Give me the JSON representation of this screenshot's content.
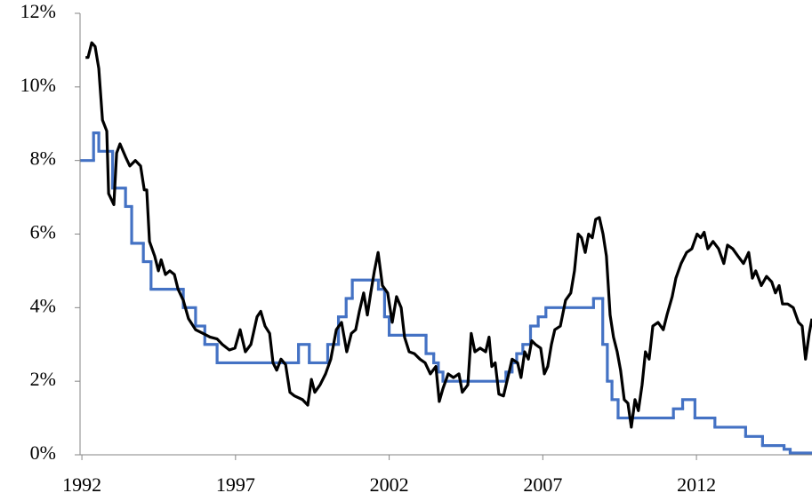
{
  "chart_data": {
    "type": "line",
    "xlim": [
      1991.94,
      2015.76
    ],
    "xticks": [
      1992,
      1997,
      2002,
      2007,
      2012
    ],
    "ylim": [
      0,
      12
    ],
    "yticks": [
      {
        "value": 0,
        "label": "0%"
      },
      {
        "value": 2,
        "label": "2%"
      },
      {
        "value": 4,
        "label": "4%"
      },
      {
        "value": 6,
        "label": "6%"
      },
      {
        "value": 8,
        "label": "8%"
      },
      {
        "value": 10,
        "label": "10%"
      },
      {
        "value": 12,
        "label": "12%"
      }
    ],
    "series": [
      {
        "color": "#4472c4",
        "step": "post",
        "x": [
          1992.0,
          1992.38,
          1992.55,
          1993.0,
          1993.42,
          1993.62,
          1994.0,
          1994.25,
          1995.3,
          1995.7,
          1996.0,
          1996.4,
          1999.05,
          1999.4,
          2000.0,
          2000.35,
          2000.6,
          2000.8,
          2001.65,
          2001.85,
          2002.0,
          2003.2,
          2003.45,
          2003.6,
          2003.75,
          2005.8,
          2006.0,
          2006.15,
          2006.35,
          2006.6,
          2006.85,
          2007.1,
          2008.65,
          2008.95,
          2009.1,
          2009.25,
          2009.45,
          2011.25,
          2011.55,
          2011.95,
          2012.6,
          2013.6,
          2014.15,
          2014.85,
          2015.05,
          2015.76
        ],
        "values": [
          8,
          8.75,
          8.25,
          7.25,
          6.75,
          5.75,
          5.25,
          4.5,
          4.0,
          3.5,
          3.0,
          2.5,
          3.0,
          2.5,
          3.0,
          3.75,
          4.25,
          4.75,
          4.5,
          3.75,
          3.25,
          2.75,
          2.5,
          2.25,
          2.0,
          2.25,
          2.5,
          2.75,
          3.0,
          3.5,
          3.75,
          4.0,
          4.25,
          3.0,
          2.0,
          1.5,
          1.0,
          1.25,
          1.5,
          1.0,
          0.75,
          0.5,
          0.25,
          0.15,
          0.05,
          0.05
        ]
      },
      {
        "color": "#000000",
        "step": "none",
        "x": [
          1992.12,
          1992.2,
          1992.32,
          1992.43,
          1992.55,
          1992.67,
          1992.81,
          1992.87,
          1993.04,
          1993.13,
          1993.24,
          1993.42,
          1993.56,
          1993.74,
          1993.91,
          1994.03,
          1994.11,
          1994.2,
          1994.37,
          1994.49,
          1994.58,
          1994.72,
          1994.86,
          1995.01,
          1995.13,
          1995.3,
          1995.47,
          1995.7,
          1995.94,
          1996.17,
          1996.4,
          1996.57,
          1996.8,
          1996.98,
          1997.15,
          1997.32,
          1997.5,
          1997.7,
          1997.82,
          1997.96,
          1998.11,
          1998.22,
          1998.34,
          1998.48,
          1998.63,
          1998.77,
          1998.92,
          1999.18,
          1999.35,
          1999.47,
          1999.58,
          1999.75,
          1999.93,
          2000.1,
          2000.28,
          2000.45,
          2000.62,
          2000.77,
          2000.91,
          2001.03,
          2001.17,
          2001.29,
          2001.4,
          2001.52,
          2001.64,
          2001.78,
          2001.95,
          2002.1,
          2002.24,
          2002.39,
          2002.5,
          2002.65,
          2002.82,
          2003.0,
          2003.17,
          2003.34,
          2003.52,
          2003.63,
          2003.75,
          2003.92,
          2004.09,
          2004.27,
          2004.38,
          2004.56,
          2004.67,
          2004.79,
          2004.96,
          2005.14,
          2005.25,
          2005.34,
          2005.45,
          2005.57,
          2005.72,
          2005.89,
          2006.0,
          2006.18,
          2006.29,
          2006.41,
          2006.53,
          2006.64,
          2006.76,
          2006.93,
          2007.05,
          2007.16,
          2007.28,
          2007.39,
          2007.57,
          2007.74,
          2007.91,
          2008.03,
          2008.15,
          2008.26,
          2008.38,
          2008.49,
          2008.61,
          2008.72,
          2008.84,
          2008.96,
          2009.07,
          2009.19,
          2009.3,
          2009.42,
          2009.53,
          2009.65,
          2009.77,
          2009.88,
          2010.0,
          2010.11,
          2010.23,
          2010.34,
          2010.46,
          2010.58,
          2010.75,
          2010.92,
          2011.04,
          2011.21,
          2011.33,
          2011.5,
          2011.68,
          2011.85,
          2012.02,
          2012.14,
          2012.25,
          2012.37,
          2012.54,
          2012.72,
          2012.89,
          2013.01,
          2013.18,
          2013.35,
          2013.53,
          2013.7,
          2013.82,
          2013.93,
          2014.11,
          2014.28,
          2014.45,
          2014.57,
          2014.69,
          2014.8,
          2014.97,
          2015.15,
          2015.32,
          2015.44,
          2015.55,
          2015.67,
          2015.76
        ],
        "values": [
          10.8,
          10.8,
          11.2,
          11.1,
          10.5,
          9.1,
          8.8,
          7.1,
          6.8,
          8.2,
          8.45,
          8.1,
          7.85,
          8.0,
          7.85,
          7.2,
          7.2,
          5.8,
          5.4,
          5.0,
          5.3,
          4.9,
          5.0,
          4.9,
          4.5,
          4.2,
          3.7,
          3.4,
          3.3,
          3.2,
          3.15,
          3.0,
          2.85,
          2.9,
          3.4,
          2.8,
          3.0,
          3.75,
          3.9,
          3.5,
          3.3,
          2.5,
          2.3,
          2.6,
          2.45,
          1.7,
          1.6,
          1.5,
          1.35,
          2.05,
          1.7,
          1.9,
          2.2,
          2.6,
          3.4,
          3.6,
          2.8,
          3.3,
          3.4,
          3.9,
          4.4,
          3.8,
          4.4,
          5.0,
          5.5,
          4.6,
          4.4,
          3.6,
          4.3,
          4.0,
          3.2,
          2.8,
          2.75,
          2.6,
          2.5,
          2.2,
          2.4,
          1.45,
          1.8,
          2.2,
          2.1,
          2.2,
          1.7,
          1.9,
          3.3,
          2.8,
          2.9,
          2.8,
          3.2,
          2.4,
          2.5,
          1.65,
          1.6,
          2.2,
          2.6,
          2.5,
          2.1,
          2.8,
          2.6,
          3.1,
          3.0,
          2.9,
          2.2,
          2.4,
          3.0,
          3.4,
          3.5,
          4.2,
          4.4,
          5.0,
          6.0,
          5.9,
          5.5,
          6.0,
          5.9,
          6.4,
          6.45,
          6.0,
          5.4,
          3.8,
          3.2,
          2.8,
          2.3,
          1.5,
          1.4,
          0.75,
          1.5,
          1.2,
          1.9,
          2.8,
          2.6,
          3.5,
          3.6,
          3.4,
          3.8,
          4.3,
          4.8,
          5.2,
          5.5,
          5.6,
          6.0,
          5.9,
          6.05,
          5.6,
          5.8,
          5.6,
          5.2,
          5.7,
          5.6,
          5.4,
          5.2,
          5.5,
          4.8,
          5.0,
          4.6,
          4.85,
          4.7,
          4.4,
          4.6,
          4.1,
          4.1,
          4.0,
          3.6,
          3.5,
          2.6,
          3.3,
          3.7
        ]
      }
    ]
  }
}
